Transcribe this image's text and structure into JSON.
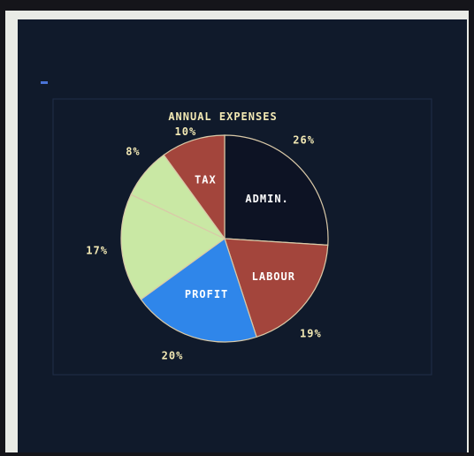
{
  "chart_data": {
    "type": "pie",
    "title": "ANNUAL EXPENSES",
    "slices": [
      {
        "label": "ADMIN.",
        "value": 26,
        "pct_label": "26%",
        "color": "#0d1324",
        "label_color": "#ffffff"
      },
      {
        "label": "LABOUR",
        "value": 19,
        "pct_label": "19%",
        "color": "#a3453c",
        "label_color": "#ffffff"
      },
      {
        "label": "PROFIT",
        "value": 20,
        "pct_label": "20%",
        "color": "#2f86ea",
        "label_color": "#ffffff"
      },
      {
        "label": "",
        "value": 17,
        "pct_label": "17%",
        "color": "#c9e8a4",
        "label_color": "#1b1b1b"
      },
      {
        "label": "",
        "value": 8,
        "pct_label": "8%",
        "color": "#c9e8a4",
        "label_color": "#1b1b1b"
      },
      {
        "label": "TAX",
        "value": 10,
        "pct_label": "10%",
        "color": "#a3453c",
        "label_color": "#ffffff"
      }
    ],
    "title_color": "#f3e9b4",
    "pct_label_color": "#f3e9b4",
    "outline_color": "#d9c9a8"
  }
}
